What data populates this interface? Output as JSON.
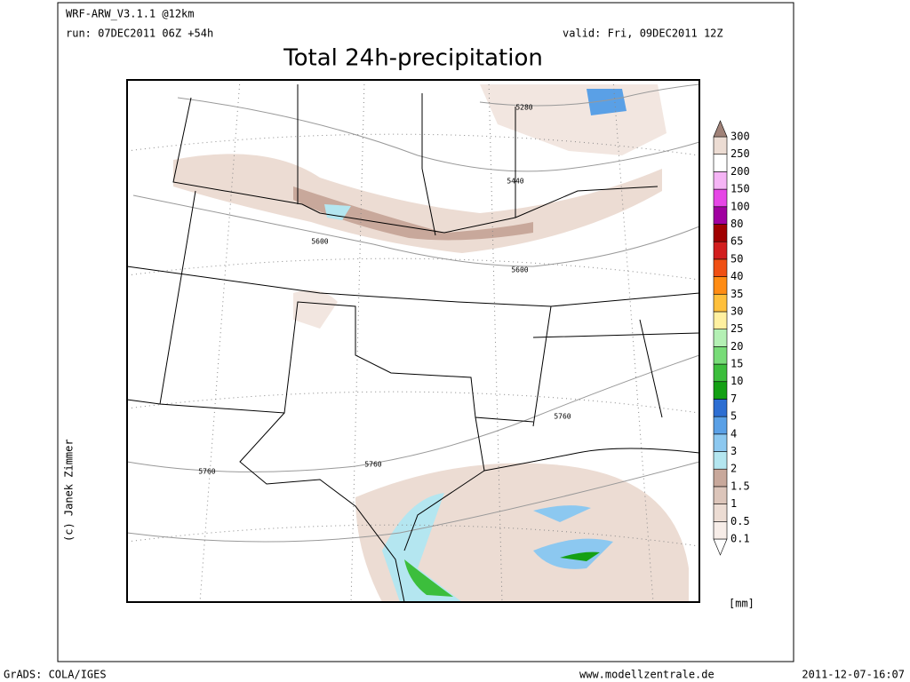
{
  "header": {
    "model": "WRF-ARW_V3.1.1 @12km",
    "run": "run: 07DEC2011 06Z +54h",
    "valid": "valid: Fri, 09DEC2011 12Z",
    "title": "Total 24h-precipitation"
  },
  "credit": "(c) Janek Zimmer",
  "map": {
    "contour_labels": [
      "5280",
      "5440",
      "5600",
      "5600",
      "5760",
      "5760",
      "5760"
    ]
  },
  "colorbar": {
    "levels": [
      0.1,
      0.5,
      1,
      1.5,
      2,
      3,
      4,
      5,
      7,
      10,
      15,
      20,
      25,
      30,
      35,
      40,
      50,
      65,
      80,
      100,
      150,
      200,
      250,
      300
    ],
    "colors": [
      "#ffffff",
      "#f7ede8",
      "#ecdcd3",
      "#dcc5ba",
      "#c8a89b",
      "#b4e6f0",
      "#8cc8f0",
      "#5aa0e6",
      "#2d6ed2",
      "#14a014",
      "#3cbe3c",
      "#78dc78",
      "#b4f0b4",
      "#fff0a0",
      "#ffc03c",
      "#ff8c14",
      "#f05014",
      "#d21e1e",
      "#a00000",
      "#a000a0",
      "#e646e6",
      "#f5b4f5",
      "#ffffff",
      "#ecdcd3",
      "#a08278"
    ],
    "unit": "[mm]"
  },
  "footer": {
    "left": "GrADS: COLA/IGES",
    "center": "www.modellzentrale.de",
    "right": "2011-12-07-16:07"
  }
}
